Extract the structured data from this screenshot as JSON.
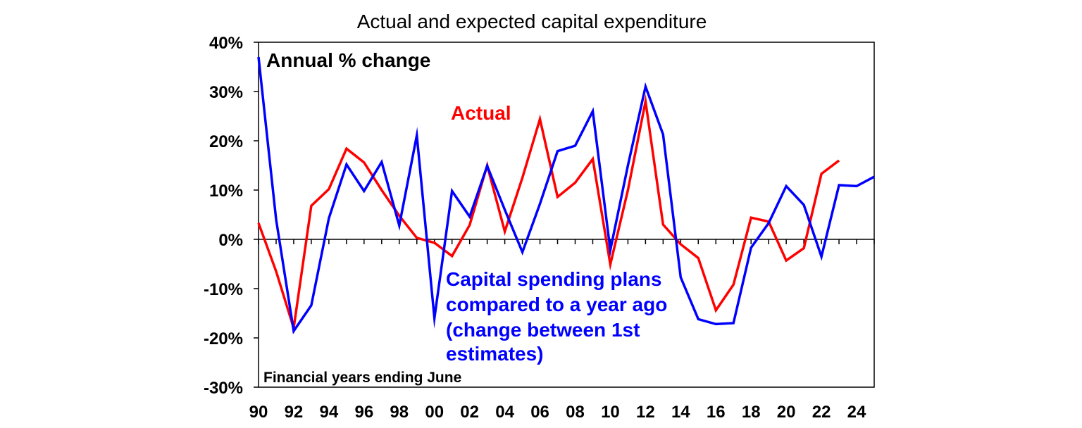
{
  "chart_data": {
    "type": "line",
    "title": "Actual and expected capital expenditure",
    "ylabel": "Annual % change",
    "xnote": "Financial years ending June",
    "ylim": [
      -30,
      40
    ],
    "xlim": [
      1990,
      2025
    ],
    "y_tick_labels": [
      "40%",
      "30%",
      "20%",
      "10%",
      "0%",
      "-10%",
      "-20%",
      "-30%"
    ],
    "y_tick_values": [
      40,
      30,
      20,
      10,
      0,
      -10,
      -20,
      -30
    ],
    "x_tick_labels": [
      "90",
      "92",
      "94",
      "96",
      "98",
      "00",
      "02",
      "04",
      "06",
      "08",
      "10",
      "12",
      "14",
      "16",
      "18",
      "20",
      "22",
      "24"
    ],
    "x_tick_values": [
      1990,
      1992,
      1994,
      1996,
      1998,
      2000,
      2002,
      2004,
      2006,
      2008,
      2010,
      2012,
      2014,
      2016,
      2018,
      2020,
      2022,
      2024
    ],
    "grid": false,
    "series": [
      {
        "name": "Actual",
        "color": "#ff0000",
        "x": [
          1990,
          1991,
          1992,
          1993,
          1994,
          1995,
          1996,
          1997,
          1998,
          1999,
          2000,
          2001,
          2002,
          2003,
          2004,
          2005,
          2006,
          2007,
          2008,
          2009,
          2010,
          2011,
          2012,
          2013,
          2014,
          2015,
          2016,
          2017,
          2018,
          2019,
          2020,
          2021,
          2022,
          2023
        ],
        "values": [
          3.3,
          -6.5,
          -18,
          6.8,
          10.2,
          18.4,
          15.6,
          10,
          4.8,
          0.3,
          -0.7,
          -3.4,
          2.9,
          15,
          1.6,
          12.5,
          24.4,
          8.6,
          11.5,
          16.3,
          -5.1,
          10,
          28,
          3,
          -1,
          -3.8,
          -14.4,
          -9.2,
          4.4,
          3.6,
          -4.3,
          -1.8,
          13.3,
          16
        ]
      },
      {
        "name": "Capital spending plans compared to a year ago (change between 1st estimates)",
        "color": "#0000ff",
        "x": [
          1990,
          1991,
          1992,
          1993,
          1994,
          1995,
          1996,
          1997,
          1998,
          1999,
          2000,
          2001,
          2002,
          2003,
          2004,
          2005,
          2006,
          2007,
          2008,
          2009,
          2010,
          2011,
          2012,
          2013,
          2014,
          2015,
          2016,
          2017,
          2018,
          2019,
          2020,
          2021,
          2022,
          2023,
          2024,
          2025
        ],
        "values": [
          37,
          4,
          -18.6,
          -13.4,
          4.3,
          15.2,
          9.8,
          15.7,
          2.8,
          21.1,
          -16,
          9.8,
          4.6,
          14.9,
          6,
          -2.6,
          7.2,
          17.9,
          19,
          26,
          -2.2,
          15,
          31,
          21.3,
          -7.7,
          -16.2,
          -17.2,
          -17,
          -1.7,
          3.3,
          10.8,
          7,
          -3.5,
          11,
          10.8,
          12.7
        ]
      }
    ],
    "annotations": {
      "ylabel": "Annual % change",
      "actual_label": "Actual",
      "plans_label_lines": [
        "Capital spending plans",
        "compared to a year ago",
        "(change between 1st",
        "estimates)"
      ],
      "xnote": "Financial years ending June"
    }
  }
}
